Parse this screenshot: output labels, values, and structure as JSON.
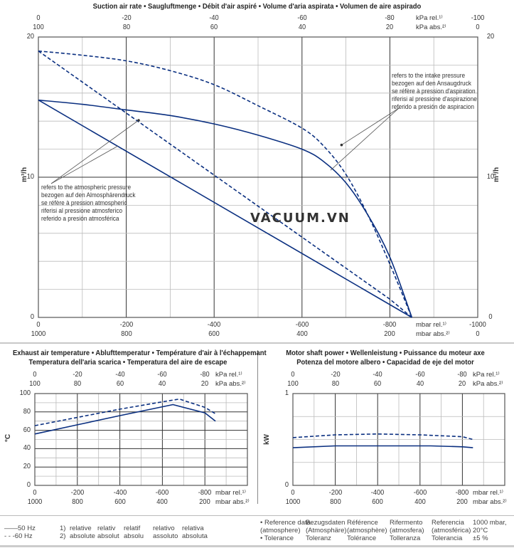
{
  "main": {
    "title": "Suction air rate  •  Saugluftmenge  •  Débit d'air aspiré  •  Volume d'aria aspirata  •  Volumen de aire aspirado",
    "watermark": "VACUUM.VN",
    "note_intake": [
      "refers to the intake pressure",
      "bezogen auf den Ansaugdruck",
      "se réfère à pression d'aspiration",
      "riferisi al pressione d'aspirazione",
      "referido a presión de aspiracion"
    ],
    "note_atmos": [
      "refers to the atmospheric pressure",
      "bezogen auf den Almosphärendruck",
      "se réfère à pression atmospheric",
      "riferisi al pressione atmosferico",
      "referido a presión atmosférica"
    ]
  },
  "temp": {
    "title_line1": "Exhaust air temperature  •  Ablufttemperatur  •  Température d'air à l'échappemant",
    "title_line2": "Temperatura dell'aria scarica  •  Temperatura del aire de escape"
  },
  "power": {
    "title_line1": "Motor shaft power  •  Wellenleistung  •  Puissance du moteur axe",
    "title_line2": "Potenza del motore albero  •  Capacidad de eje del motor"
  },
  "legend": {
    "series": [
      {
        "symbol": "——",
        "label": "50 Hz"
      },
      {
        "symbol": "- - -",
        "label": "60 Hz"
      }
    ],
    "footnotes": [
      {
        "num": "1)",
        "items": [
          "relative",
          "relativ",
          "relatif",
          "relativo",
          "relativa"
        ]
      },
      {
        "num": "2)",
        "items": [
          "absolute",
          "absolut",
          "absolu",
          "assoluto",
          "absoluta"
        ]
      }
    ],
    "reference": {
      "row1": [
        "• Reference data",
        "Bezugsdaten",
        "Référence",
        "Rifermento",
        "Referencia",
        "1000 mbar,"
      ],
      "row2": [
        "  (atmosphere)",
        "(Atmosphäre)",
        "(atmosphère)",
        "(atmosfera)",
        "(atmosférica)",
        "20°C"
      ],
      "row3": [
        "• Tolerance",
        "Toleranz",
        "Tolérance",
        "Tolleranza",
        "Tolerancia",
        "±5 %"
      ]
    }
  },
  "chart_data": [
    {
      "type": "line",
      "title": "Suction air rate",
      "ylabel": "m³/h",
      "xlabel": "mbar rel.¹⁾ / mbar abs.²⁾",
      "xlim": [
        0,
        -1000
      ],
      "ylim": [
        0,
        20
      ],
      "y_ticks": [
        "0",
        "10",
        "20"
      ],
      "x_ticks_rel": [
        "0",
        "-200",
        "-400",
        "-600",
        "-800",
        "-1000"
      ],
      "x_ticks_abs": [
        "1000",
        "800",
        "600",
        "400",
        "200",
        "0"
      ],
      "x_unit_rel": "mbar rel.¹⁾",
      "x_unit_abs": "mbar abs.²⁾",
      "top_ticks_rel": [
        "0",
        "-20",
        "-40",
        "-60",
        "-80",
        "-100"
      ],
      "top_ticks_abs": [
        "100",
        "80",
        "60",
        "40",
        "20",
        "0"
      ],
      "top_unit_rel": "kPa rel.¹⁾",
      "top_unit_abs": "kPa abs.²⁾",
      "grid": true,
      "series": [
        {
          "name": "50 Hz (intake pressure)",
          "style": "solid",
          "points": [
            [
              0,
              15.5
            ],
            [
              -100,
              15.2
            ],
            [
              -200,
              14.8
            ],
            [
              -300,
              14.4
            ],
            [
              -400,
              13.8
            ],
            [
              -500,
              13.0
            ],
            [
              -600,
              12.0
            ],
            [
              -650,
              11.1
            ],
            [
              -700,
              9.6
            ],
            [
              -750,
              7.3
            ],
            [
              -800,
              4.3
            ],
            [
              -850,
              0
            ]
          ]
        },
        {
          "name": "60 Hz (intake pressure)",
          "style": "dashed",
          "points": [
            [
              0,
              19.0
            ],
            [
              -100,
              18.7
            ],
            [
              -200,
              18.3
            ],
            [
              -300,
              17.6
            ],
            [
              -400,
              16.6
            ],
            [
              -500,
              15.1
            ],
            [
              -600,
              13.5
            ],
            [
              -650,
              12.2
            ],
            [
              -700,
              10.2
            ],
            [
              -750,
              7.3
            ],
            [
              -800,
              3.8
            ],
            [
              -850,
              0
            ]
          ]
        },
        {
          "name": "50 Hz (atmospheric pressure)",
          "style": "solid",
          "points": [
            [
              0,
              15.5
            ],
            [
              -850,
              0
            ]
          ]
        },
        {
          "name": "60 Hz (atmospheric pressure)",
          "style": "dashed",
          "points": [
            [
              0,
              19.0
            ],
            [
              -800,
              1.3
            ],
            [
              -850,
              0
            ]
          ]
        }
      ]
    },
    {
      "type": "line",
      "title": "Exhaust air temperature",
      "ylabel": "°C",
      "xlim": [
        0,
        -1000
      ],
      "ylim": [
        0,
        100
      ],
      "y_ticks": [
        "0",
        "20",
        "40",
        "60",
        "80",
        "100"
      ],
      "x_ticks_rel": [
        "0",
        "-200",
        "-400",
        "-600",
        "-800"
      ],
      "x_ticks_abs": [
        "1000",
        "800",
        "600",
        "400",
        "200"
      ],
      "x_unit_rel": "mbar rel.¹⁾",
      "x_unit_abs": "mbar abs.²⁾",
      "top_ticks_rel": [
        "0",
        "-20",
        "-40",
        "-60",
        "-80"
      ],
      "top_ticks_abs": [
        "100",
        "80",
        "60",
        "40",
        "20"
      ],
      "top_unit_rel": "kPa rel.¹⁾",
      "top_unit_abs": "kPa abs.²⁾",
      "grid": true,
      "series": [
        {
          "name": "50 Hz",
          "style": "solid",
          "points": [
            [
              0,
              56
            ],
            [
              -200,
              66
            ],
            [
              -400,
              76
            ],
            [
              -650,
              88
            ],
            [
              -800,
              79
            ],
            [
              -850,
              70
            ]
          ]
        },
        {
          "name": "60 Hz",
          "style": "dashed",
          "points": [
            [
              0,
              65
            ],
            [
              -200,
              74
            ],
            [
              -400,
              83
            ],
            [
              -600,
              91
            ],
            [
              -680,
              94
            ],
            [
              -800,
              85
            ],
            [
              -850,
              78
            ]
          ]
        }
      ]
    },
    {
      "type": "line",
      "title": "Motor shaft power",
      "ylabel": "kW",
      "xlim": [
        0,
        -1000
      ],
      "ylim": [
        0,
        1
      ],
      "y_ticks": [
        "0",
        "1"
      ],
      "x_ticks_rel": [
        "0",
        "-200",
        "-400",
        "-600",
        "-800"
      ],
      "x_ticks_abs": [
        "1000",
        "800",
        "600",
        "400",
        "200"
      ],
      "x_unit_rel": "mbar rel.¹⁾",
      "x_unit_abs": "mbar abs.²⁾",
      "top_ticks_rel": [
        "0",
        "-20",
        "-40",
        "-60",
        "-80"
      ],
      "top_ticks_abs": [
        "100",
        "80",
        "60",
        "40",
        "20"
      ],
      "top_unit_rel": "kPa rel.¹⁾",
      "top_unit_abs": "kPa abs.²⁾",
      "grid": true,
      "series": [
        {
          "name": "50 Hz",
          "style": "solid",
          "points": [
            [
              0,
              0.41
            ],
            [
              -200,
              0.43
            ],
            [
              -400,
              0.43
            ],
            [
              -650,
              0.43
            ],
            [
              -800,
              0.42
            ],
            [
              -850,
              0.41
            ]
          ]
        },
        {
          "name": "60 Hz",
          "style": "dashed",
          "points": [
            [
              0,
              0.52
            ],
            [
              -200,
              0.55
            ],
            [
              -400,
              0.56
            ],
            [
              -600,
              0.55
            ],
            [
              -800,
              0.53
            ],
            [
              -850,
              0.5
            ]
          ]
        }
      ]
    }
  ]
}
